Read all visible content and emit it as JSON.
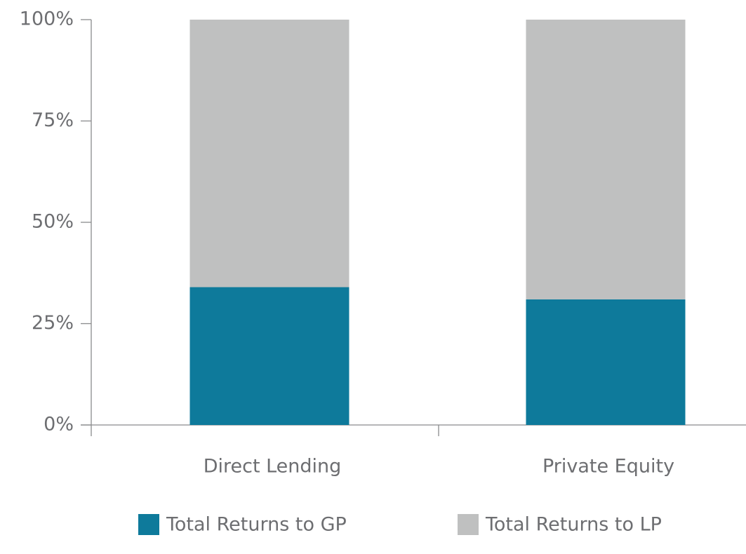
{
  "chart_data": {
    "type": "stacked-bar",
    "categories": [
      "Direct Lending",
      "Private Equity"
    ],
    "series": [
      {
        "name": "Total Returns to GP",
        "color": "#0e7a9b",
        "values": [
          34,
          31
        ]
      },
      {
        "name": "Total Returns to LP",
        "color": "#bfc0c0",
        "values": [
          66,
          69
        ]
      }
    ],
    "ylim": [
      0,
      100
    ],
    "yticks": [
      {
        "value": 0,
        "label": "0%"
      },
      {
        "value": 25,
        "label": "25%"
      },
      {
        "value": 50,
        "label": "50%"
      },
      {
        "value": 75,
        "label": "75%"
      },
      {
        "value": 100,
        "label": "100%"
      }
    ]
  }
}
